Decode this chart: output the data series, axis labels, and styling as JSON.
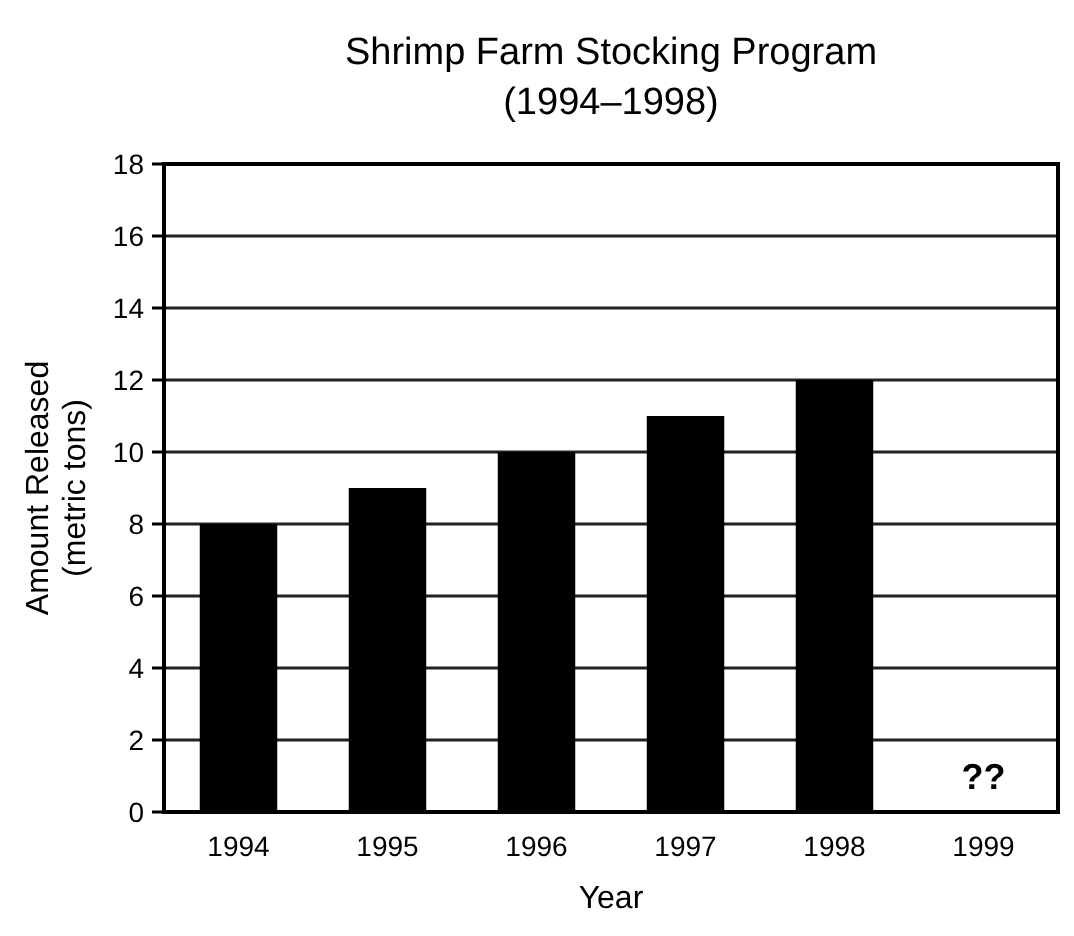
{
  "chart_data": {
    "type": "bar",
    "title": "Shrimp Farm Stocking Program",
    "subtitle": "(1994–1998)",
    "xlabel": "Year",
    "ylabel": "Amount Released\n(metric tons)",
    "categories": [
      "1994",
      "1995",
      "1996",
      "1997",
      "1998",
      "1999"
    ],
    "values": [
      8,
      9,
      10,
      11,
      12,
      null
    ],
    "color": "#000000",
    "ylim": [
      0,
      18
    ],
    "yticks": [
      0,
      2,
      4,
      6,
      8,
      10,
      12,
      14,
      16,
      18
    ],
    "grid": "y",
    "annotations": [
      "??"
    ]
  }
}
